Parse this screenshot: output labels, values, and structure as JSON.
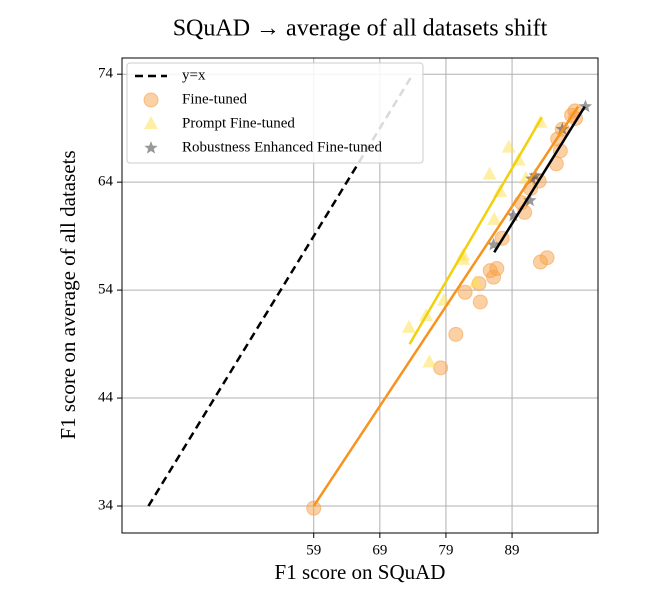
{
  "chart_data": {
    "type": "scatter",
    "title": "SQuAD → average of all datasets shift",
    "x_label": "F1 score on SQuAD",
    "y_label": "F1 score on average of all datasets",
    "xlim": [
      30,
      102
    ],
    "ylim": [
      31.5,
      75.5
    ],
    "xticks": [
      59,
      69,
      79,
      89
    ],
    "yticks": [
      34,
      44,
      54,
      64,
      74
    ],
    "grid": true,
    "legend": "upper left",
    "series": [
      {
        "name": "y=x",
        "color": "#000000",
        "marker": "none",
        "linestyle": "dashed",
        "x": [
          34,
          74
        ],
        "values": [
          34,
          74
        ]
      },
      {
        "name": "Fine-tuned",
        "color": "#f7a24a",
        "marker": "circle",
        "fit_color": "#f7931e",
        "x": [
          59,
          78.2,
          80.5,
          81.9,
          84,
          84.2,
          85.7,
          86.2,
          86.7,
          87.5,
          90.4,
          90.9,
          91.8,
          93.1,
          93.3,
          94.3,
          95.7,
          95.9,
          96.3,
          96.6,
          98,
          98.5,
          98.6
        ],
        "values": [
          33.8,
          46.8,
          49.9,
          53.8,
          54.6,
          52.9,
          55.8,
          55.2,
          56,
          58.8,
          62.1,
          61.2,
          63.4,
          64.1,
          56.6,
          57,
          65.7,
          68,
          66.9,
          68.9,
          70.2,
          70.6,
          69.9
        ],
        "fit_x": [
          59,
          99
        ],
        "fit_y": [
          34,
          71
        ]
      },
      {
        "name": "Prompt Fine-tuned",
        "color": "#ffe04a",
        "marker": "triangle",
        "fit_color": "#f2d00e",
        "x": [
          73.4,
          76,
          76.5,
          78.7,
          81.6,
          81.6,
          83.5,
          85.6,
          86.3,
          87.2,
          88.5,
          90,
          91.1,
          93.3
        ],
        "values": [
          50.5,
          51.6,
          47.3,
          53,
          56.8,
          57.2,
          54.7,
          64.7,
          60.5,
          63.1,
          67.2,
          66,
          64.3,
          69.5
        ],
        "fit_x": [
          73.5,
          93.5
        ],
        "fit_y": [
          49,
          70
        ]
      },
      {
        "name": "Robustness Enhanced Fine-tuned",
        "color": "#555555",
        "marker": "star",
        "fit_color": "#000000",
        "x": [
          86.2,
          89.2,
          91.7,
          92,
          92.5,
          96.6,
          100.1
        ],
        "values": [
          58.2,
          60.9,
          62.3,
          64.3,
          64.6,
          68.9,
          71
        ],
        "fit_x": [
          86.3,
          100
        ],
        "fit_y": [
          57.5,
          71
        ]
      }
    ]
  }
}
